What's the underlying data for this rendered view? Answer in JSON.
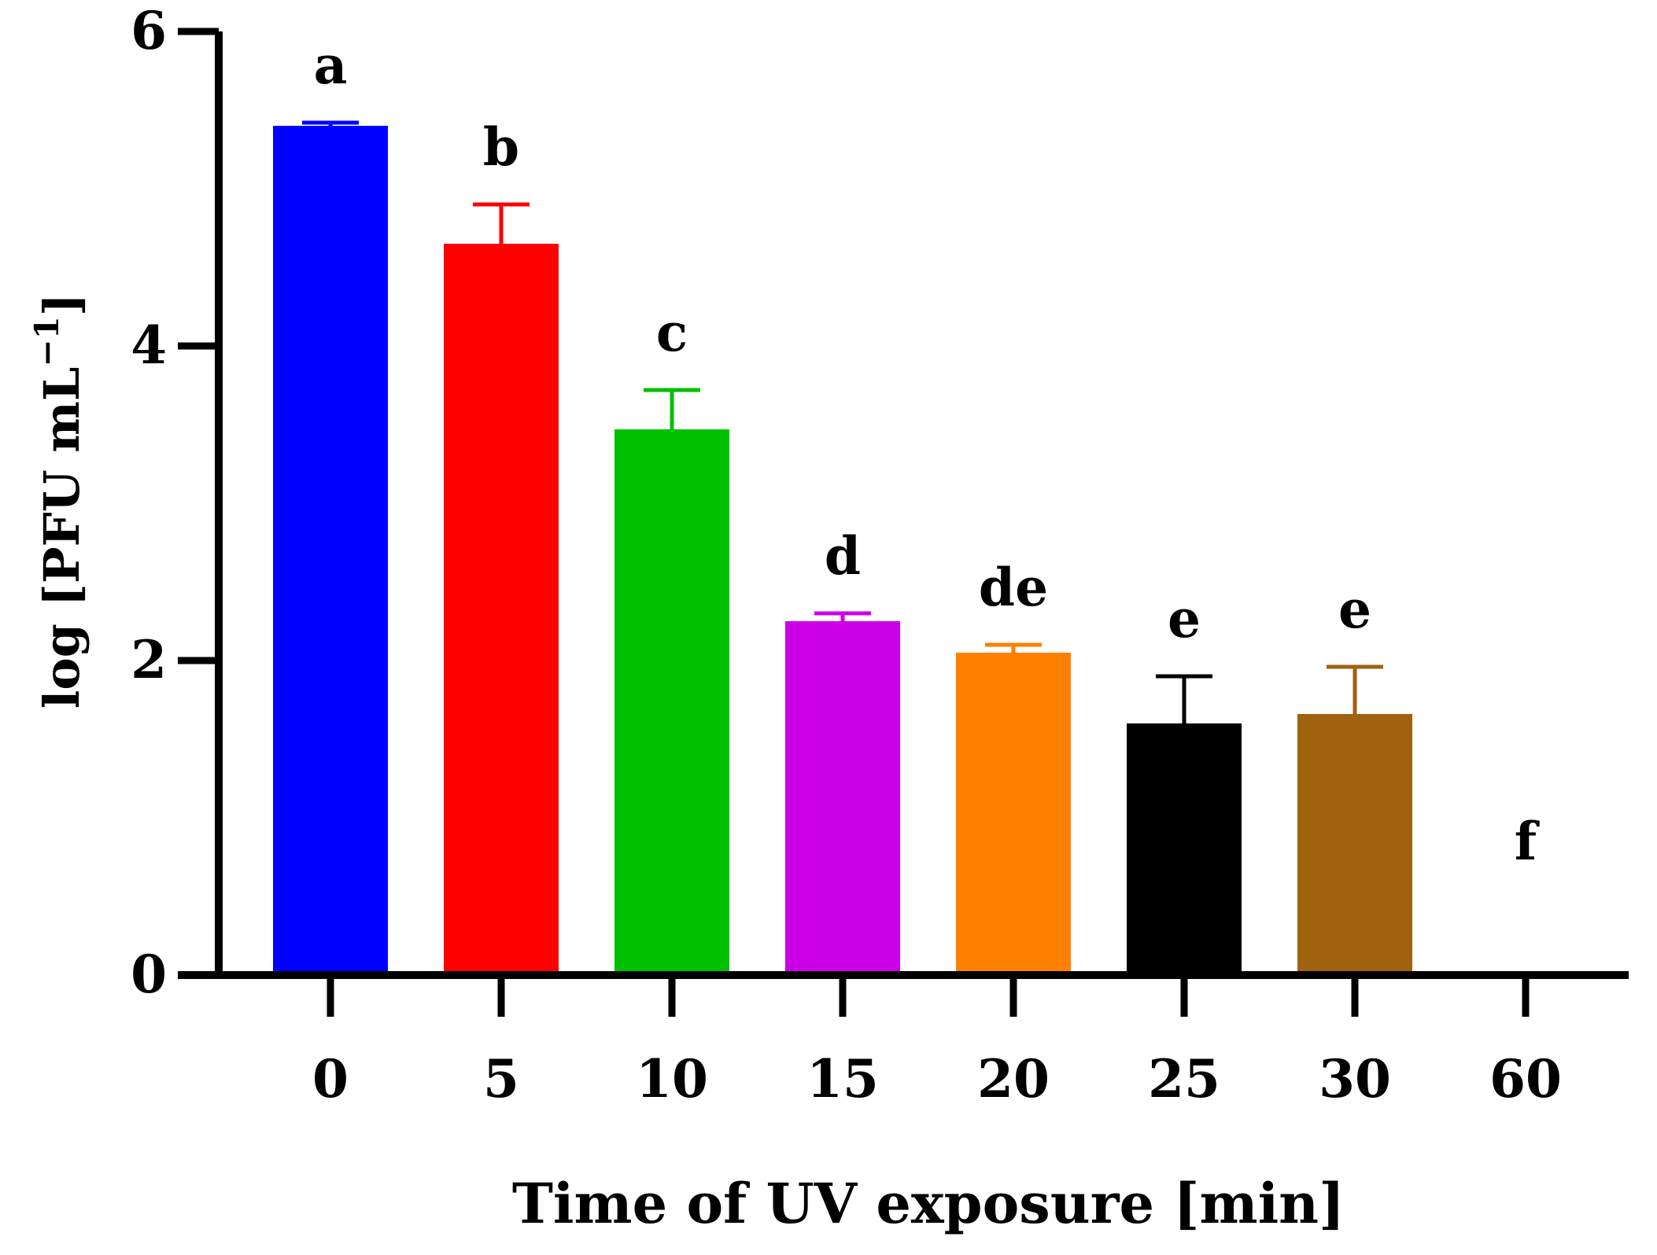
{
  "chart_data": {
    "type": "bar",
    "categories": [
      "0",
      "5",
      "10",
      "15",
      "20",
      "25",
      "30",
      "60"
    ],
    "values": [
      5.4,
      4.65,
      3.47,
      2.25,
      2.05,
      1.6,
      1.66,
      0
    ],
    "errors": [
      0.02,
      0.25,
      0.25,
      0.05,
      0.05,
      0.3,
      0.3,
      0
    ],
    "significance_letters": [
      "a",
      "b",
      "c",
      "d",
      "de",
      "e",
      "e",
      "f"
    ],
    "colors": [
      "#0000ff",
      "#ff0000",
      "#00c000",
      "#cc00e6",
      "#ff8000",
      "#000000",
      "#a0620f",
      "#000000"
    ],
    "xlabel": "Time of UV exposure [min]",
    "ylabel_main": "log [PFU  mL",
    "ylabel_sup": "−1",
    "ylabel_end": "]",
    "ylim": [
      0,
      6
    ],
    "yticks": [
      "0",
      "2",
      "4",
      "6"
    ],
    "grid": false
  }
}
